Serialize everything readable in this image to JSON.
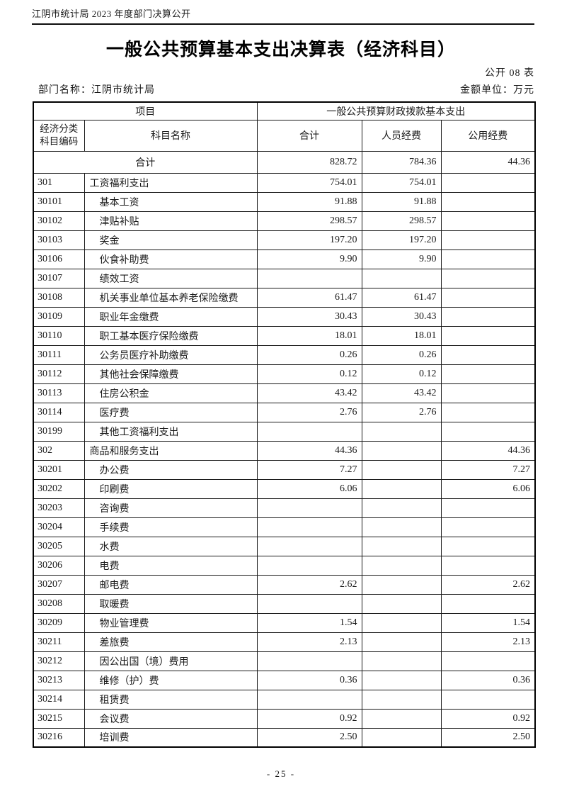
{
  "page": {
    "header": "江阴市统计局 2023 年度部门决算公开",
    "title": "一般公共预算基本支出决算表（经济科目）",
    "table_note": "公开 08 表",
    "department_label": "部门名称：江阴市统计局",
    "unit_label": "金额单位：万元",
    "page_number": "- 25 -"
  },
  "colors": {
    "text": "#1a1a1a",
    "border": "#000000",
    "background": "#ffffff"
  },
  "table": {
    "header": {
      "project": "项目",
      "budget_group": "一般公共预算财政拨款基本支出",
      "code_col_line1": "经济分类",
      "code_col_line2": "科目编码",
      "name_col": "科目名称",
      "total_col": "合计",
      "personnel_col": "人员经费",
      "public_col": "公用经费"
    },
    "rows": [
      {
        "merged": true,
        "name": "合计",
        "total": "828.72",
        "personnel": "784.36",
        "public": "44.36"
      },
      {
        "code": "301",
        "name": "工资福利支出",
        "bold": true,
        "indent": 0,
        "total": "754.01",
        "personnel": "754.01",
        "public": ""
      },
      {
        "code": "30101",
        "name": "基本工资",
        "indent": 1,
        "total": "91.88",
        "personnel": "91.88",
        "public": ""
      },
      {
        "code": "30102",
        "name": "津贴补贴",
        "indent": 1,
        "total": "298.57",
        "personnel": "298.57",
        "public": ""
      },
      {
        "code": "30103",
        "name": "奖金",
        "indent": 1,
        "total": "197.20",
        "personnel": "197.20",
        "public": ""
      },
      {
        "code": "30106",
        "name": "伙食补助费",
        "indent": 1,
        "total": "9.90",
        "personnel": "9.90",
        "public": ""
      },
      {
        "code": "30107",
        "name": "绩效工资",
        "indent": 1,
        "total": "",
        "personnel": "",
        "public": ""
      },
      {
        "code": "30108",
        "name": "机关事业单位基本养老保险缴费",
        "indent": 1,
        "total": "61.47",
        "personnel": "61.47",
        "public": ""
      },
      {
        "code": "30109",
        "name": "职业年金缴费",
        "indent": 1,
        "total": "30.43",
        "personnel": "30.43",
        "public": ""
      },
      {
        "code": "30110",
        "name": "职工基本医疗保险缴费",
        "indent": 1,
        "total": "18.01",
        "personnel": "18.01",
        "public": ""
      },
      {
        "code": "30111",
        "name": "公务员医疗补助缴费",
        "indent": 1,
        "total": "0.26",
        "personnel": "0.26",
        "public": ""
      },
      {
        "code": "30112",
        "name": "其他社会保障缴费",
        "indent": 1,
        "total": "0.12",
        "personnel": "0.12",
        "public": ""
      },
      {
        "code": "30113",
        "name": "住房公积金",
        "indent": 1,
        "total": "43.42",
        "personnel": "43.42",
        "public": ""
      },
      {
        "code": "30114",
        "name": "医疗费",
        "indent": 1,
        "total": "2.76",
        "personnel": "2.76",
        "public": ""
      },
      {
        "code": "30199",
        "name": "其他工资福利支出",
        "indent": 1,
        "total": "",
        "personnel": "",
        "public": ""
      },
      {
        "code": "302",
        "name": "商品和服务支出",
        "bold": true,
        "indent": 0,
        "total": "44.36",
        "personnel": "",
        "public": "44.36"
      },
      {
        "code": "30201",
        "name": "办公费",
        "indent": 1,
        "total": "7.27",
        "personnel": "",
        "public": "7.27"
      },
      {
        "code": "30202",
        "name": "印刷费",
        "indent": 1,
        "total": "6.06",
        "personnel": "",
        "public": "6.06"
      },
      {
        "code": "30203",
        "name": "咨询费",
        "indent": 1,
        "total": "",
        "personnel": "",
        "public": ""
      },
      {
        "code": "30204",
        "name": "手续费",
        "indent": 1,
        "total": "",
        "personnel": "",
        "public": ""
      },
      {
        "code": "30205",
        "name": "水费",
        "indent": 1,
        "total": "",
        "personnel": "",
        "public": ""
      },
      {
        "code": "30206",
        "name": "电费",
        "indent": 1,
        "total": "",
        "personnel": "",
        "public": ""
      },
      {
        "code": "30207",
        "name": "邮电费",
        "indent": 1,
        "total": "2.62",
        "personnel": "",
        "public": "2.62"
      },
      {
        "code": "30208",
        "name": "取暖费",
        "indent": 1,
        "total": "",
        "personnel": "",
        "public": ""
      },
      {
        "code": "30209",
        "name": "物业管理费",
        "indent": 1,
        "total": "1.54",
        "personnel": "",
        "public": "1.54"
      },
      {
        "code": "30211",
        "name": "差旅费",
        "indent": 1,
        "total": "2.13",
        "personnel": "",
        "public": "2.13"
      },
      {
        "code": "30212",
        "name": "因公出国（境）费用",
        "indent": 1,
        "total": "",
        "personnel": "",
        "public": ""
      },
      {
        "code": "30213",
        "name": "维修（护）费",
        "indent": 1,
        "total": "0.36",
        "personnel": "",
        "public": "0.36"
      },
      {
        "code": "30214",
        "name": "租赁费",
        "indent": 1,
        "total": "",
        "personnel": "",
        "public": ""
      },
      {
        "code": "30215",
        "name": "会议费",
        "indent": 1,
        "total": "0.92",
        "personnel": "",
        "public": "0.92"
      },
      {
        "code": "30216",
        "name": "培训费",
        "indent": 1,
        "total": "2.50",
        "personnel": "",
        "public": "2.50"
      }
    ]
  }
}
